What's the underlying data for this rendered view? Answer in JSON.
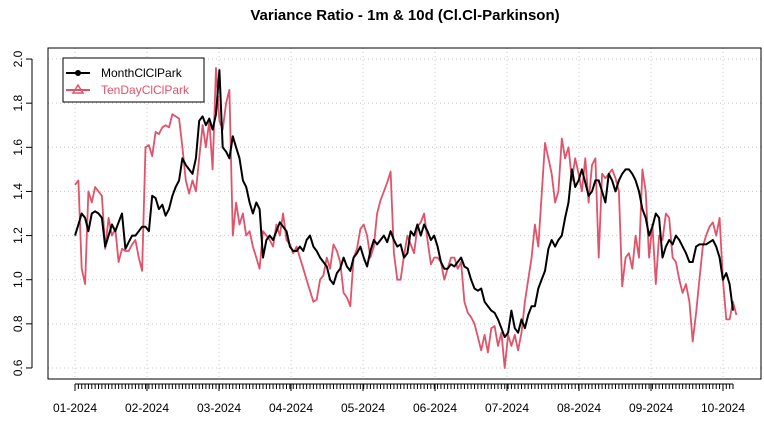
{
  "chart_data": {
    "type": "line",
    "title": "Variance Ratio - 1m & 10d (Cl.Cl-Parkinson)",
    "xlabel": "",
    "ylabel": "",
    "ylim": [
      0.55,
      2.05
    ],
    "y_ticks": [
      0.6,
      0.8,
      1.0,
      1.2,
      1.4,
      1.6,
      1.8,
      2.0
    ],
    "y_tick_labels": [
      "0.6",
      "0.8",
      "1.0",
      "1.2",
      "1.4",
      "1.6",
      "1.8",
      "2.0"
    ],
    "x_month_labels": [
      "01-2024",
      "02-2024",
      "03-2024",
      "04-2024",
      "05-2024",
      "06-2024",
      "07-2024",
      "08-2024",
      "09-2024",
      "10-2024"
    ],
    "grid": true,
    "legend_position": "top-left",
    "series": [
      {
        "name": "MonthClClPark",
        "color": "#000000",
        "marker": "circle",
        "values": [
          1.2,
          1.25,
          1.3,
          1.28,
          1.22,
          1.3,
          1.31,
          1.3,
          1.28,
          1.15,
          1.2,
          1.25,
          1.22,
          1.26,
          1.3,
          1.14,
          1.17,
          1.2,
          1.2,
          1.22,
          1.24,
          1.24,
          1.22,
          1.38,
          1.37,
          1.32,
          1.34,
          1.29,
          1.32,
          1.38,
          1.42,
          1.45,
          1.55,
          1.52,
          1.5,
          1.48,
          1.55,
          1.72,
          1.74,
          1.7,
          1.73,
          1.68,
          1.75,
          1.95,
          1.6,
          1.58,
          1.55,
          1.65,
          1.6,
          1.55,
          1.45,
          1.42,
          1.35,
          1.3,
          1.35,
          1.32,
          1.1,
          1.18,
          1.2,
          1.18,
          1.22,
          1.26,
          1.24,
          1.22,
          1.15,
          1.13,
          1.13,
          1.15,
          1.13,
          1.18,
          1.2,
          1.15,
          1.13,
          1.1,
          1.08,
          1.06,
          1.0,
          0.98,
          1.03,
          1.05,
          1.1,
          1.06,
          1.04,
          1.1,
          1.12,
          1.15,
          1.1,
          1.06,
          1.13,
          1.18,
          1.16,
          1.18,
          1.2,
          1.17,
          1.22,
          1.18,
          1.15,
          1.16,
          1.1,
          1.12,
          1.22,
          1.2,
          1.25,
          1.2,
          1.25,
          1.22,
          1.18,
          1.2,
          1.15,
          1.08,
          1.05,
          1.05,
          1.07,
          1.06,
          1.08,
          1.1,
          1.06,
          1.05,
          1.0,
          0.96,
          0.95,
          0.96,
          0.9,
          0.88,
          0.86,
          0.85,
          0.82,
          0.78,
          0.74,
          0.76,
          0.86,
          0.78,
          0.76,
          0.82,
          0.78,
          0.84,
          0.88,
          0.88,
          0.96,
          1.0,
          1.04,
          1.14,
          1.18,
          1.15,
          1.18,
          1.2,
          1.28,
          1.35,
          1.5,
          1.42,
          1.45,
          1.5,
          1.44,
          1.38,
          1.4,
          1.45,
          1.45,
          1.4,
          1.35,
          1.48,
          1.45,
          1.4,
          1.45,
          1.48,
          1.5,
          1.5,
          1.48,
          1.45,
          1.4,
          1.32,
          1.28,
          1.2,
          1.24,
          1.3,
          1.28,
          1.1,
          1.15,
          1.18,
          1.16,
          1.2,
          1.18,
          1.15,
          1.12,
          1.08,
          1.08,
          1.15,
          1.16,
          1.16,
          1.16,
          1.17,
          1.18,
          1.15,
          1.1,
          1.0,
          1.03,
          0.98,
          0.86
        ]
      },
      {
        "name": "TenDayClClPark",
        "color": "#DF536B",
        "marker": "triangle",
        "values": [
          1.43,
          1.45,
          1.05,
          0.98,
          1.4,
          1.35,
          1.42,
          1.4,
          1.38,
          1.14,
          1.28,
          1.2,
          1.23,
          1.08,
          1.14,
          1.13,
          1.13,
          1.16,
          1.18,
          1.1,
          1.04,
          1.6,
          1.61,
          1.56,
          1.67,
          1.66,
          1.69,
          1.7,
          1.69,
          1.75,
          1.74,
          1.73,
          1.6,
          1.45,
          1.39,
          1.45,
          1.4,
          1.55,
          1.7,
          1.6,
          1.72,
          1.5,
          1.96,
          1.72,
          1.68,
          1.8,
          1.86,
          1.2,
          1.35,
          1.25,
          1.3,
          1.2,
          1.22,
          1.15,
          1.1,
          1.05,
          1.22,
          1.2,
          1.18,
          1.15,
          1.25,
          1.2,
          1.3,
          1.18,
          1.16,
          1.12,
          1.15,
          1.1,
          1.05,
          1.0,
          0.95,
          0.9,
          0.91,
          1.0,
          1.02,
          1.1,
          1.05,
          1.16,
          1.13,
          1.08,
          0.94,
          0.92,
          0.88,
          1.1,
          1.14,
          1.23,
          1.25,
          1.2,
          1.1,
          1.15,
          1.3,
          1.36,
          1.4,
          1.44,
          1.49,
          1.12,
          1.0,
          1.0,
          1.11,
          1.2,
          1.16,
          1.12,
          1.24,
          1.26,
          1.3,
          1.18,
          1.07,
          1.1,
          1.1,
          1.08,
          1.0,
          1.05,
          1.1,
          1.1,
          1.05,
          1.08,
          0.9,
          0.85,
          0.83,
          0.8,
          0.74,
          0.68,
          0.75,
          0.67,
          0.78,
          0.79,
          0.7,
          0.76,
          0.6,
          0.75,
          0.7,
          0.75,
          0.68,
          0.76,
          0.9,
          1.0,
          1.1,
          1.25,
          1.15,
          1.38,
          1.62,
          1.55,
          1.48,
          1.35,
          1.4,
          1.64,
          1.55,
          1.6,
          1.45,
          1.55,
          1.48,
          1.4,
          1.55,
          1.35,
          1.52,
          1.55,
          1.1,
          1.48,
          1.46,
          1.48,
          1.5,
          1.46,
          1.4,
          0.97,
          1.1,
          1.12,
          1.05,
          1.2,
          1.1,
          1.5,
          1.4,
          1.1,
          1.25,
          0.98,
          1.2,
          1.18,
          1.3,
          1.28,
          1.1,
          1.08,
          1.0,
          0.94,
          0.98,
          0.9,
          0.72,
          0.85,
          1.0,
          1.15,
          1.2,
          1.24,
          1.26,
          1.2,
          1.28,
          1.0,
          0.82,
          0.82,
          0.9,
          0.84
        ]
      }
    ]
  }
}
